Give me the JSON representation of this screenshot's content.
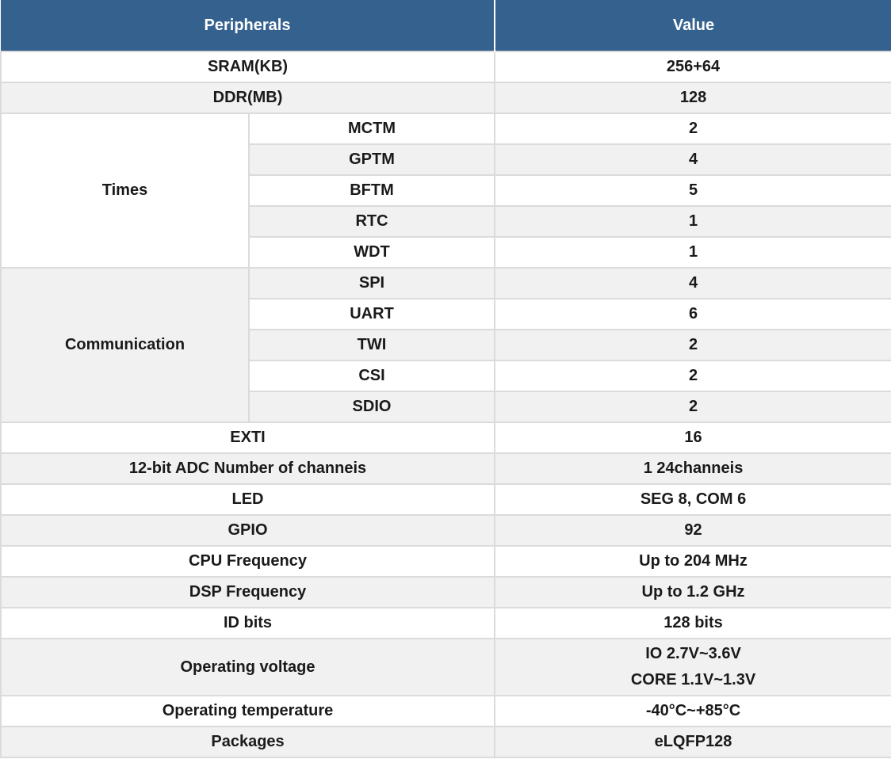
{
  "table": {
    "header": {
      "peripherals": "Peripherals",
      "value": "Value"
    },
    "colors": {
      "header_bg": "#35618F",
      "header_text": "#FFFFFF",
      "stripe_bg": "#F1F1F1",
      "border": "#DBDBDB",
      "text": "#1A1A1A"
    },
    "rows": [
      {
        "type": "simple",
        "label": "SRAM(KB)",
        "value": "256+64",
        "shade": false
      },
      {
        "type": "simple",
        "label": "DDR(MB)",
        "value": "128",
        "shade": true
      },
      {
        "type": "group",
        "label": "Times",
        "shade": false,
        "items": [
          {
            "label": "MCTM",
            "value": "2",
            "shade": false
          },
          {
            "label": "GPTM",
            "value": "4",
            "shade": true
          },
          {
            "label": "BFTM",
            "value": "5",
            "shade": false
          },
          {
            "label": "RTC",
            "value": "1",
            "shade": true
          },
          {
            "label": "WDT",
            "value": "1",
            "shade": false
          }
        ]
      },
      {
        "type": "group",
        "label": "Communication",
        "shade": true,
        "items": [
          {
            "label": "SPI",
            "value": "4",
            "shade": true
          },
          {
            "label": "UART",
            "value": "6",
            "shade": false
          },
          {
            "label": "TWI",
            "value": "2",
            "shade": true
          },
          {
            "label": "CSI",
            "value": "2",
            "shade": false
          },
          {
            "label": "SDIO",
            "value": "2",
            "shade": true
          }
        ]
      },
      {
        "type": "simple",
        "label": "EXTI",
        "value": "16",
        "shade": false
      },
      {
        "type": "simple",
        "label": "12-bit ADC Number of channeis",
        "value": "1 24channeis",
        "shade": true
      },
      {
        "type": "simple",
        "label": "LED",
        "value": "SEG 8, COM 6",
        "shade": false
      },
      {
        "type": "simple",
        "label": "GPIO",
        "value": "92",
        "shade": true
      },
      {
        "type": "simple",
        "label": "CPU Frequency",
        "value": "Up to 204 MHz",
        "shade": false
      },
      {
        "type": "simple",
        "label": "DSP Frequency",
        "value": "Up to 1.2 GHz",
        "shade": true
      },
      {
        "type": "simple",
        "label": "ID bits",
        "value": "128 bits",
        "shade": false
      },
      {
        "type": "simple",
        "label": "Operating voltage",
        "value_lines": [
          "IO 2.7V~3.6V",
          "CORE 1.1V~1.3V"
        ],
        "shade": true
      },
      {
        "type": "simple",
        "label": "Operating temperature",
        "value": "-40°C~+85°C",
        "shade": false
      },
      {
        "type": "simple",
        "label": "Packages",
        "value": "eLQFP128",
        "shade": true
      }
    ]
  }
}
